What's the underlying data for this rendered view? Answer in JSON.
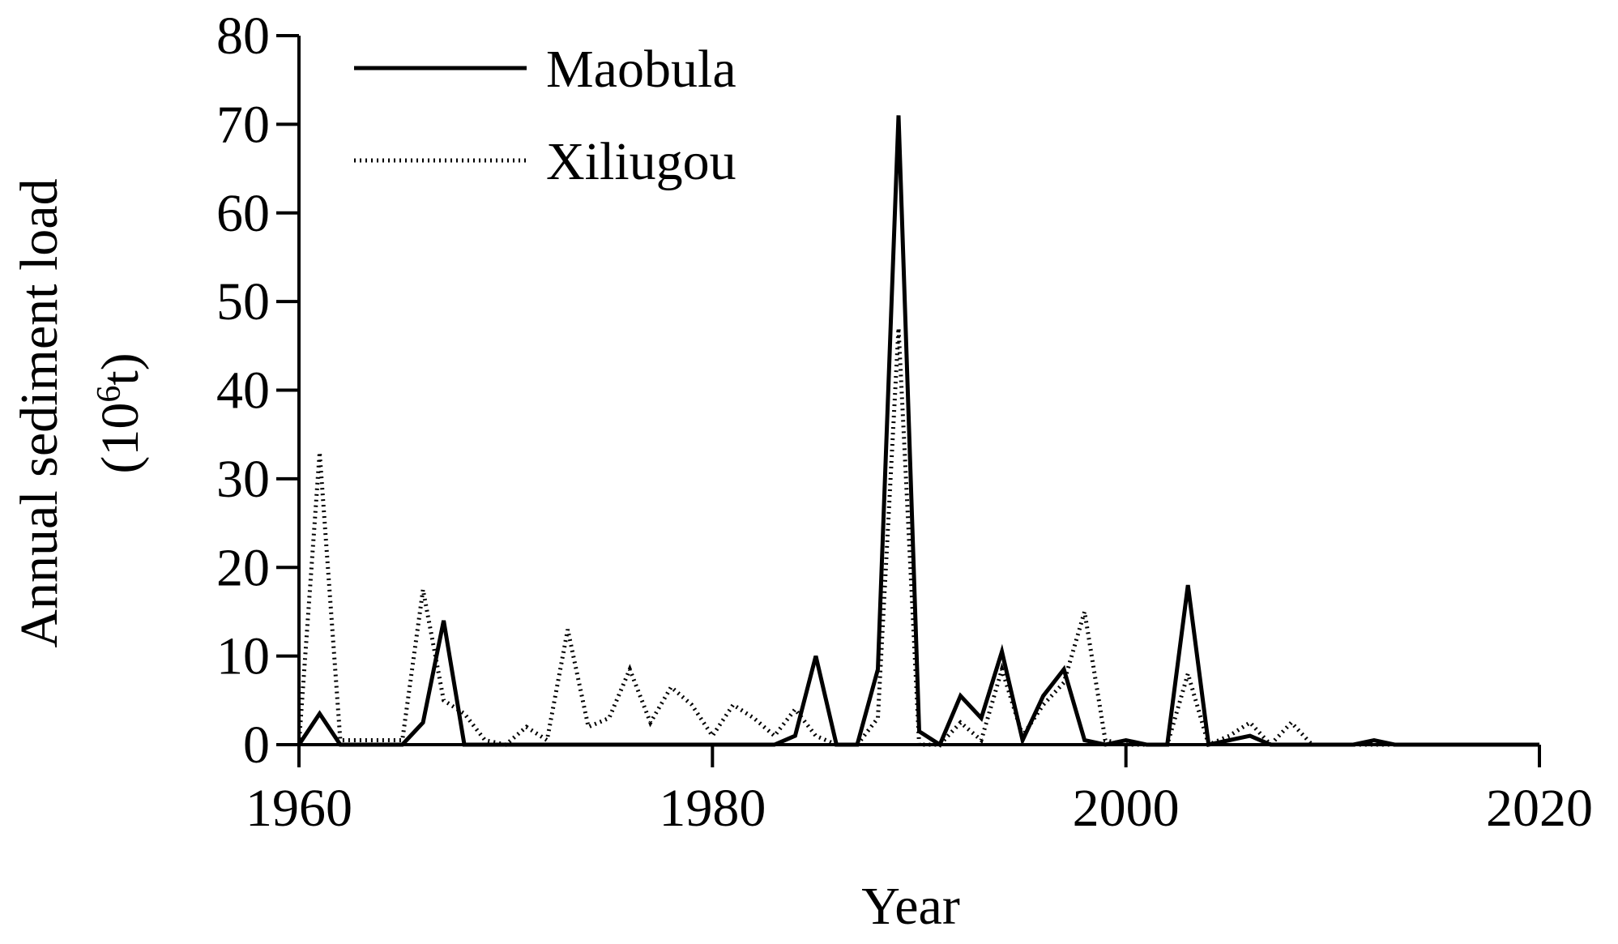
{
  "chart_data": {
    "type": "line",
    "xlabel": "Year",
    "ylabel_line1": "Annual sediment load",
    "ylabel_line2_base": "(10",
    "ylabel_line2_sup": "6",
    "ylabel_line2_end": "t)",
    "xlim": [
      1960,
      2020
    ],
    "ylim": [
      0,
      80
    ],
    "xticks": [
      "1960",
      "1980",
      "2000",
      "2020"
    ],
    "yticks": [
      "0",
      "10",
      "20",
      "30",
      "40",
      "50",
      "60",
      "70",
      "80"
    ],
    "grid": false,
    "legend_position": "top-left",
    "series": [
      {
        "name": "Maobula",
        "style": "solid",
        "color": "#000000",
        "x": [
          1960,
          1961,
          1962,
          1963,
          1964,
          1965,
          1966,
          1967,
          1968,
          1969,
          1970,
          1971,
          1972,
          1973,
          1974,
          1975,
          1976,
          1977,
          1978,
          1979,
          1980,
          1981,
          1982,
          1983,
          1984,
          1985,
          1986,
          1987,
          1988,
          1989,
          1990,
          1991,
          1992,
          1993,
          1994,
          1995,
          1996,
          1997,
          1998,
          1999,
          2000,
          2001,
          2002,
          2003,
          2004,
          2005,
          2006,
          2007,
          2008,
          2009,
          2010,
          2011,
          2012,
          2013,
          2014,
          2015,
          2016,
          2017,
          2018,
          2019,
          2020
        ],
        "y": [
          0,
          3.5,
          0,
          0,
          0,
          0,
          2.5,
          14,
          0,
          0,
          0,
          0,
          0,
          0,
          0,
          0,
          0,
          0,
          0,
          0,
          0,
          0,
          0,
          0,
          1,
          10,
          0,
          0,
          8.5,
          71,
          1.5,
          0,
          5.5,
          3,
          10.5,
          0.5,
          5.5,
          8.5,
          0.5,
          0,
          0.5,
          0,
          0,
          18,
          0,
          0.5,
          1,
          0,
          0,
          0,
          0,
          0,
          0.5,
          0,
          0,
          0,
          0,
          0,
          0,
          0,
          0
        ]
      },
      {
        "name": "Xiliugou",
        "style": "dotted",
        "color": "#000000",
        "x": [
          1960,
          1961,
          1962,
          1963,
          1964,
          1965,
          1966,
          1967,
          1968,
          1969,
          1970,
          1971,
          1972,
          1973,
          1974,
          1975,
          1976,
          1977,
          1978,
          1979,
          1980,
          1981,
          1982,
          1983,
          1984,
          1985,
          1986,
          1987,
          1988,
          1989,
          1990,
          1991,
          1992,
          1993,
          1994,
          1995,
          1996,
          1997,
          1998,
          1999,
          2000,
          2001,
          2002,
          2003,
          2004,
          2005,
          2006,
          2007,
          2008,
          2009,
          2010,
          2011,
          2012,
          2013,
          2014,
          2015,
          2016,
          2017,
          2018,
          2019,
          2020
        ],
        "y": [
          0,
          33,
          0.5,
          0.5,
          0.5,
          0.5,
          17.5,
          5,
          3.5,
          0.5,
          0,
          2,
          0.5,
          13,
          2,
          3,
          8.5,
          2.5,
          6.5,
          4.5,
          1,
          4.5,
          3,
          1,
          4,
          1,
          0,
          0,
          3,
          47,
          0,
          0,
          2.5,
          0.5,
          8.5,
          1,
          4.5,
          7,
          15,
          0.5,
          0,
          0,
          0,
          8,
          0,
          1,
          2.5,
          0,
          2.5,
          0,
          0,
          0,
          0,
          0,
          0,
          0,
          0,
          0,
          0,
          0,
          0
        ]
      }
    ]
  }
}
